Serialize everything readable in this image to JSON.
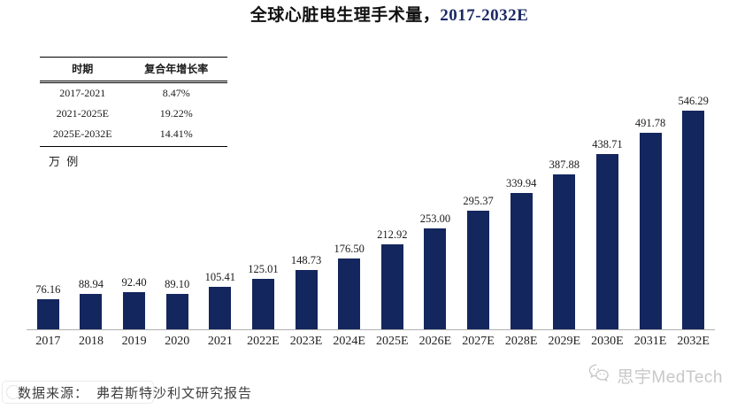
{
  "title": {
    "cn": "全球心脏电生理手术量，",
    "range": "2017-2032E"
  },
  "cagr_table": {
    "headers": [
      "时期",
      "复合年增长率"
    ],
    "rows": [
      [
        "2017-2021",
        "8.47%"
      ],
      [
        "2021-2025E",
        "19.22%"
      ],
      [
        "2025E-2032E",
        "14.41%"
      ]
    ]
  },
  "unit_label": "万 例",
  "chart_data": {
    "type": "bar",
    "title": "全球心脏电生理手术量，2017-2032E",
    "categories": [
      "2017",
      "2018",
      "2019",
      "2020",
      "2021",
      "2022E",
      "2023E",
      "2024E",
      "2025E",
      "2026E",
      "2027E",
      "2028E",
      "2029E",
      "2030E",
      "2031E",
      "2032E"
    ],
    "values": [
      76.16,
      88.94,
      92.4,
      89.1,
      105.41,
      125.01,
      148.73,
      176.5,
      212.92,
      253.0,
      295.37,
      339.94,
      387.88,
      438.71,
      491.78,
      546.29
    ],
    "xlabel": "",
    "ylabel": "万 例",
    "ylim": [
      0,
      615
    ],
    "grid": false,
    "legend": "none",
    "value_labels_shown": true,
    "bar_color": "#13265e"
  },
  "source": {
    "label": "数据来源：",
    "text": "弗若斯特沙利文研究报告"
  },
  "brand": {
    "icon": "wechat-icon",
    "name": "思宇MedTech"
  },
  "colors": {
    "bar": "#13265e",
    "title_range": "#1c2a66",
    "axis_line": "#b0b0b0",
    "brand_gray": "#c8c8c8"
  }
}
